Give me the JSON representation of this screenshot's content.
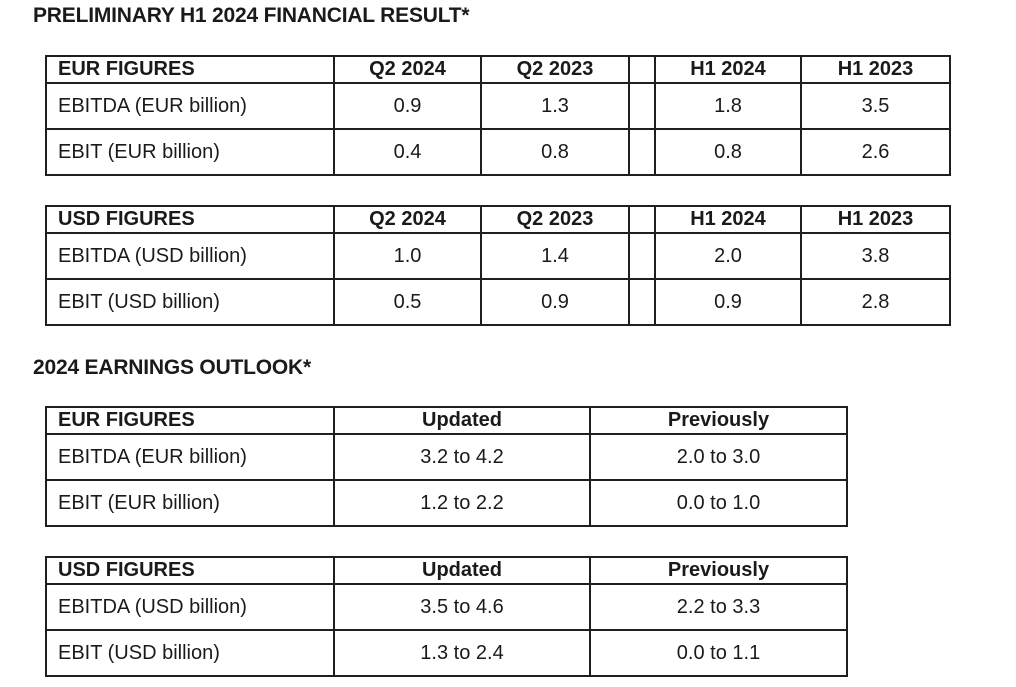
{
  "section1": {
    "title": "PRELIMINARY H1 2024 FINANCIAL RESULT*",
    "eur_table": {
      "headers": [
        "EUR FIGURES",
        "Q2 2024",
        "Q2 2023",
        "H1 2024",
        "H1 2023"
      ],
      "rows": [
        {
          "label": "EBITDA (EUR billion)",
          "q2_2024": "0.9",
          "q2_2023": "1.3",
          "h1_2024": "1.8",
          "h1_2023": "3.5"
        },
        {
          "label": "EBIT (EUR billion)",
          "q2_2024": "0.4",
          "q2_2023": "0.8",
          "h1_2024": "0.8",
          "h1_2023": "2.6"
        }
      ]
    },
    "usd_table": {
      "headers": [
        "USD FIGURES",
        "Q2 2024",
        "Q2 2023",
        "H1 2024",
        "H1 2023"
      ],
      "rows": [
        {
          "label": "EBITDA (USD billion)",
          "q2_2024": "1.0",
          "q2_2023": "1.4",
          "h1_2024": "2.0",
          "h1_2023": "3.8"
        },
        {
          "label": "EBIT (USD billion)",
          "q2_2024": "0.5",
          "q2_2023": "0.9",
          "h1_2024": "0.9",
          "h1_2023": "2.8"
        }
      ]
    }
  },
  "section2": {
    "title": "2024 EARNINGS OUTLOOK*",
    "eur_table": {
      "headers": [
        "EUR FIGURES",
        "Updated",
        "Previously"
      ],
      "rows": [
        {
          "label": "EBITDA (EUR billion)",
          "updated": "3.2 to 4.2",
          "previously": "2.0 to 3.0"
        },
        {
          "label": "EBIT (EUR billion)",
          "updated": "1.2 to 2.2",
          "previously": "0.0 to 1.0"
        }
      ]
    },
    "usd_table": {
      "headers": [
        "USD FIGURES",
        "Updated",
        "Previously"
      ],
      "rows": [
        {
          "label": "EBITDA (USD billion)",
          "updated": "3.5 to 4.6",
          "previously": "2.2 to 3.3"
        },
        {
          "label": "EBIT (USD billion)",
          "updated": "1.3 to 2.4",
          "previously": "0.0 to 1.1"
        }
      ]
    }
  }
}
